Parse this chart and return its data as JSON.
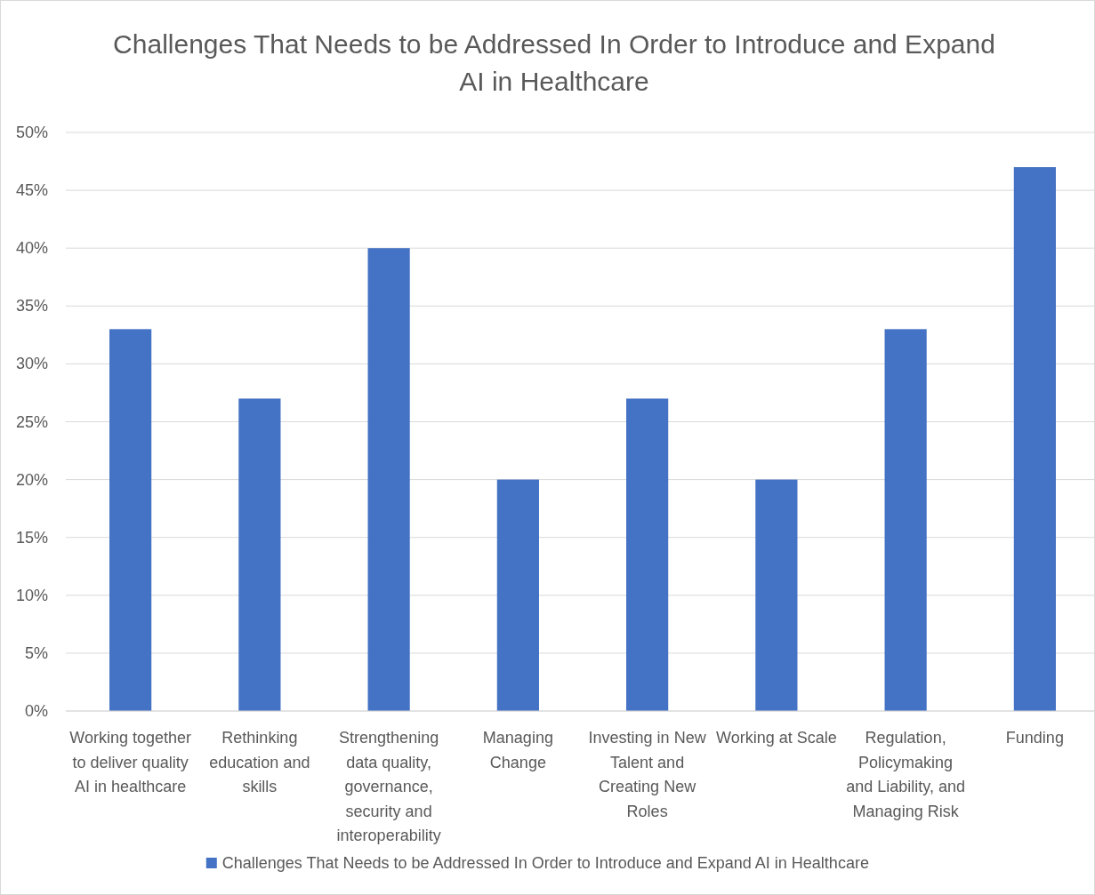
{
  "chart_data": {
    "type": "bar",
    "title": "Challenges That Needs to be Addressed In Order to Introduce and Expand AI in Healthcare",
    "categories": [
      "Working together to deliver quality AI in healthcare",
      "Rethinking education and skills",
      "Strengthening data quality, governance, security and interoperability",
      "Managing Change",
      "Investing in New Talent and Creating New Roles",
      "Working at Scale",
      "Regulation, Policymaking and Liability, and Managing Risk",
      "Funding"
    ],
    "series": [
      {
        "name": "Challenges That Needs to be Addressed In Order to Introduce and Expand AI in Healthcare",
        "color": "#4472c4",
        "values": [
          33,
          27,
          40,
          20,
          27,
          20,
          33,
          47
        ]
      }
    ],
    "ylim": [
      0,
      50
    ],
    "yticks": [
      {
        "value": 0,
        "label": "0%"
      },
      {
        "value": 5,
        "label": "5%"
      },
      {
        "value": 10,
        "label": "10%"
      },
      {
        "value": 15,
        "label": "15%"
      },
      {
        "value": 20,
        "label": "20%"
      },
      {
        "value": 25,
        "label": "25%"
      },
      {
        "value": 30,
        "label": "30%"
      },
      {
        "value": 35,
        "label": "35%"
      },
      {
        "value": 40,
        "label": "40%"
      },
      {
        "value": 45,
        "label": "45%"
      },
      {
        "value": 50,
        "label": "50%"
      }
    ],
    "grid": "y",
    "legend": "bottom"
  }
}
